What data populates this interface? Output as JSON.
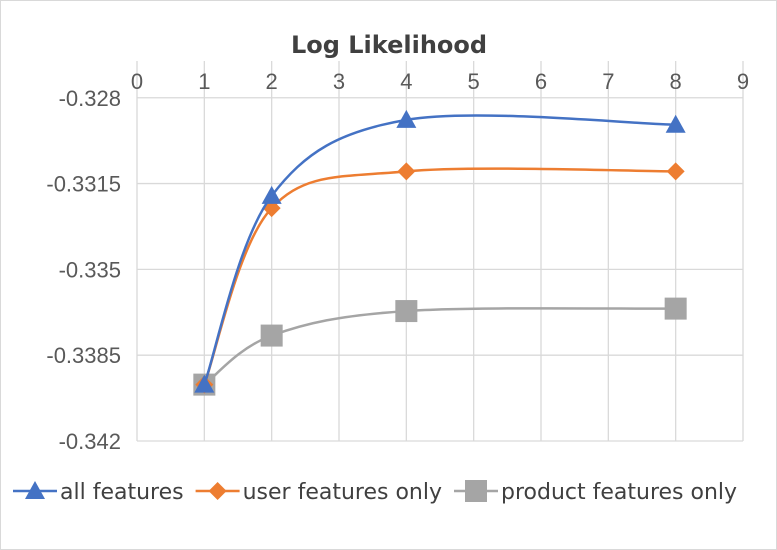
{
  "chart_data": {
    "type": "scatter",
    "title": "Log Likelihood",
    "xlabel": "",
    "ylabel": "",
    "xlim": [
      0,
      9
    ],
    "ylim": [
      -0.342,
      -0.3265
    ],
    "x_ticks": [
      "0",
      "1",
      "2",
      "3",
      "4",
      "5",
      "6",
      "7",
      "8",
      "9"
    ],
    "y_ticks": [
      "-0.328",
      "-0.3315",
      "-0.335",
      "-0.3385",
      "-0.342"
    ],
    "grid": true,
    "legend_position": "bottom",
    "smooth_lines": true,
    "series": [
      {
        "name": "all features",
        "color": "#4472c4",
        "marker": "triangle",
        "x": [
          1,
          2,
          4,
          8
        ],
        "y": [
          -0.3397,
          -0.332,
          -0.3289,
          -0.3291
        ]
      },
      {
        "name": "user features only",
        "color": "#ed7d31",
        "marker": "diamond",
        "x": [
          1,
          2,
          4,
          8
        ],
        "y": [
          -0.3397,
          -0.3325,
          -0.331,
          -0.331
        ]
      },
      {
        "name": "product features only",
        "color": "#a5a5a5",
        "marker": "square",
        "x": [
          1,
          2,
          4,
          8
        ],
        "y": [
          -0.3397,
          -0.3377,
          -0.3367,
          -0.3366
        ]
      }
    ]
  }
}
